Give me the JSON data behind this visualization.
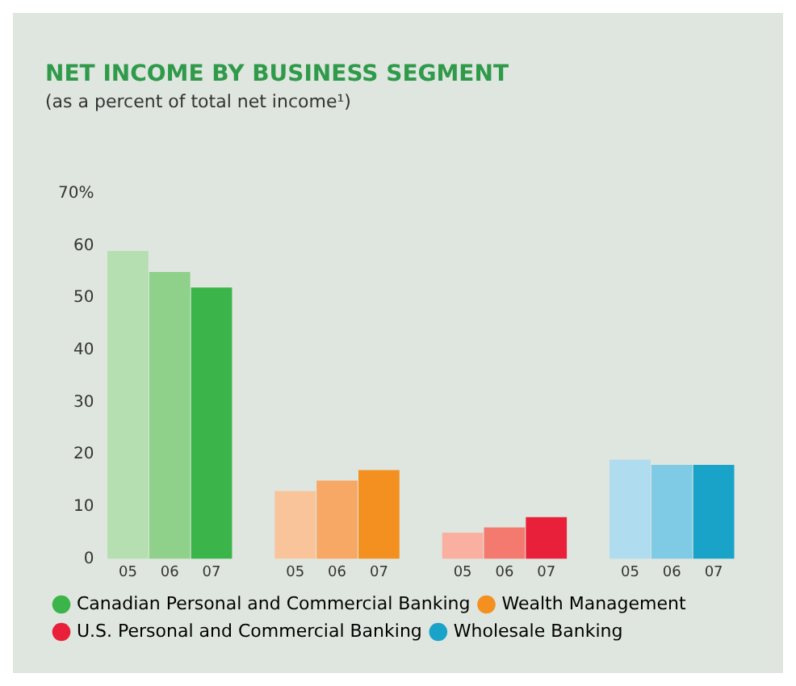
{
  "chart_data": {
    "type": "bar",
    "title": "NET INCOME BY BUSINESS SEGMENT",
    "subtitle": "(as a percent of total net income¹)",
    "categories": [
      "05",
      "06",
      "07",
      null,
      "05",
      "06",
      "07",
      null,
      "05",
      "06",
      "07",
      null,
      "05",
      "06",
      "07"
    ],
    "series": [
      {
        "name": "Canadian Personal and Commercial Banking",
        "color": "#3bb54a",
        "colors": [
          "#b5dfb0",
          "#8fd08a",
          "#3bb54a",
          null,
          null,
          null,
          null,
          null,
          null,
          null,
          null,
          null,
          null,
          null,
          null
        ],
        "values": [
          59,
          55,
          52,
          null,
          null,
          null,
          null,
          null,
          null,
          null,
          null,
          null,
          null,
          null,
          null
        ]
      },
      {
        "name": "Wealth Management",
        "color": "#f39020",
        "colors": [
          null,
          null,
          null,
          null,
          "#f9c49a",
          "#f7a865",
          "#f39020",
          null,
          null,
          null,
          null,
          null,
          null,
          null,
          null
        ],
        "values": [
          null,
          null,
          null,
          null,
          13,
          15,
          17,
          null,
          null,
          null,
          null,
          null,
          null,
          null,
          null
        ]
      },
      {
        "name": "U.S. Personal and Commercial Banking",
        "color": "#e8203a",
        "colors": [
          null,
          null,
          null,
          null,
          null,
          null,
          null,
          null,
          "#f9b0a0",
          "#f47a70",
          "#e8203a",
          null,
          null,
          null,
          null
        ],
        "values": [
          null,
          null,
          null,
          null,
          null,
          null,
          null,
          null,
          5,
          6,
          8,
          null,
          null,
          null,
          null
        ]
      },
      {
        "name": "Wholesale Banking",
        "color": "#1aa3c8",
        "colors": [
          null,
          null,
          null,
          null,
          null,
          null,
          null,
          null,
          null,
          null,
          null,
          null,
          "#b0dcef",
          "#7fcbe6",
          "#1aa3c8"
        ],
        "values": [
          null,
          null,
          null,
          null,
          null,
          null,
          null,
          null,
          null,
          null,
          null,
          null,
          19,
          18,
          18
        ]
      }
    ],
    "ylim": [
      0,
      70
    ],
    "yticks": [
      0,
      10,
      20,
      30,
      40,
      50,
      60,
      {
        "value": 70,
        "label": "70%"
      }
    ],
    "legend": "bottom left"
  }
}
